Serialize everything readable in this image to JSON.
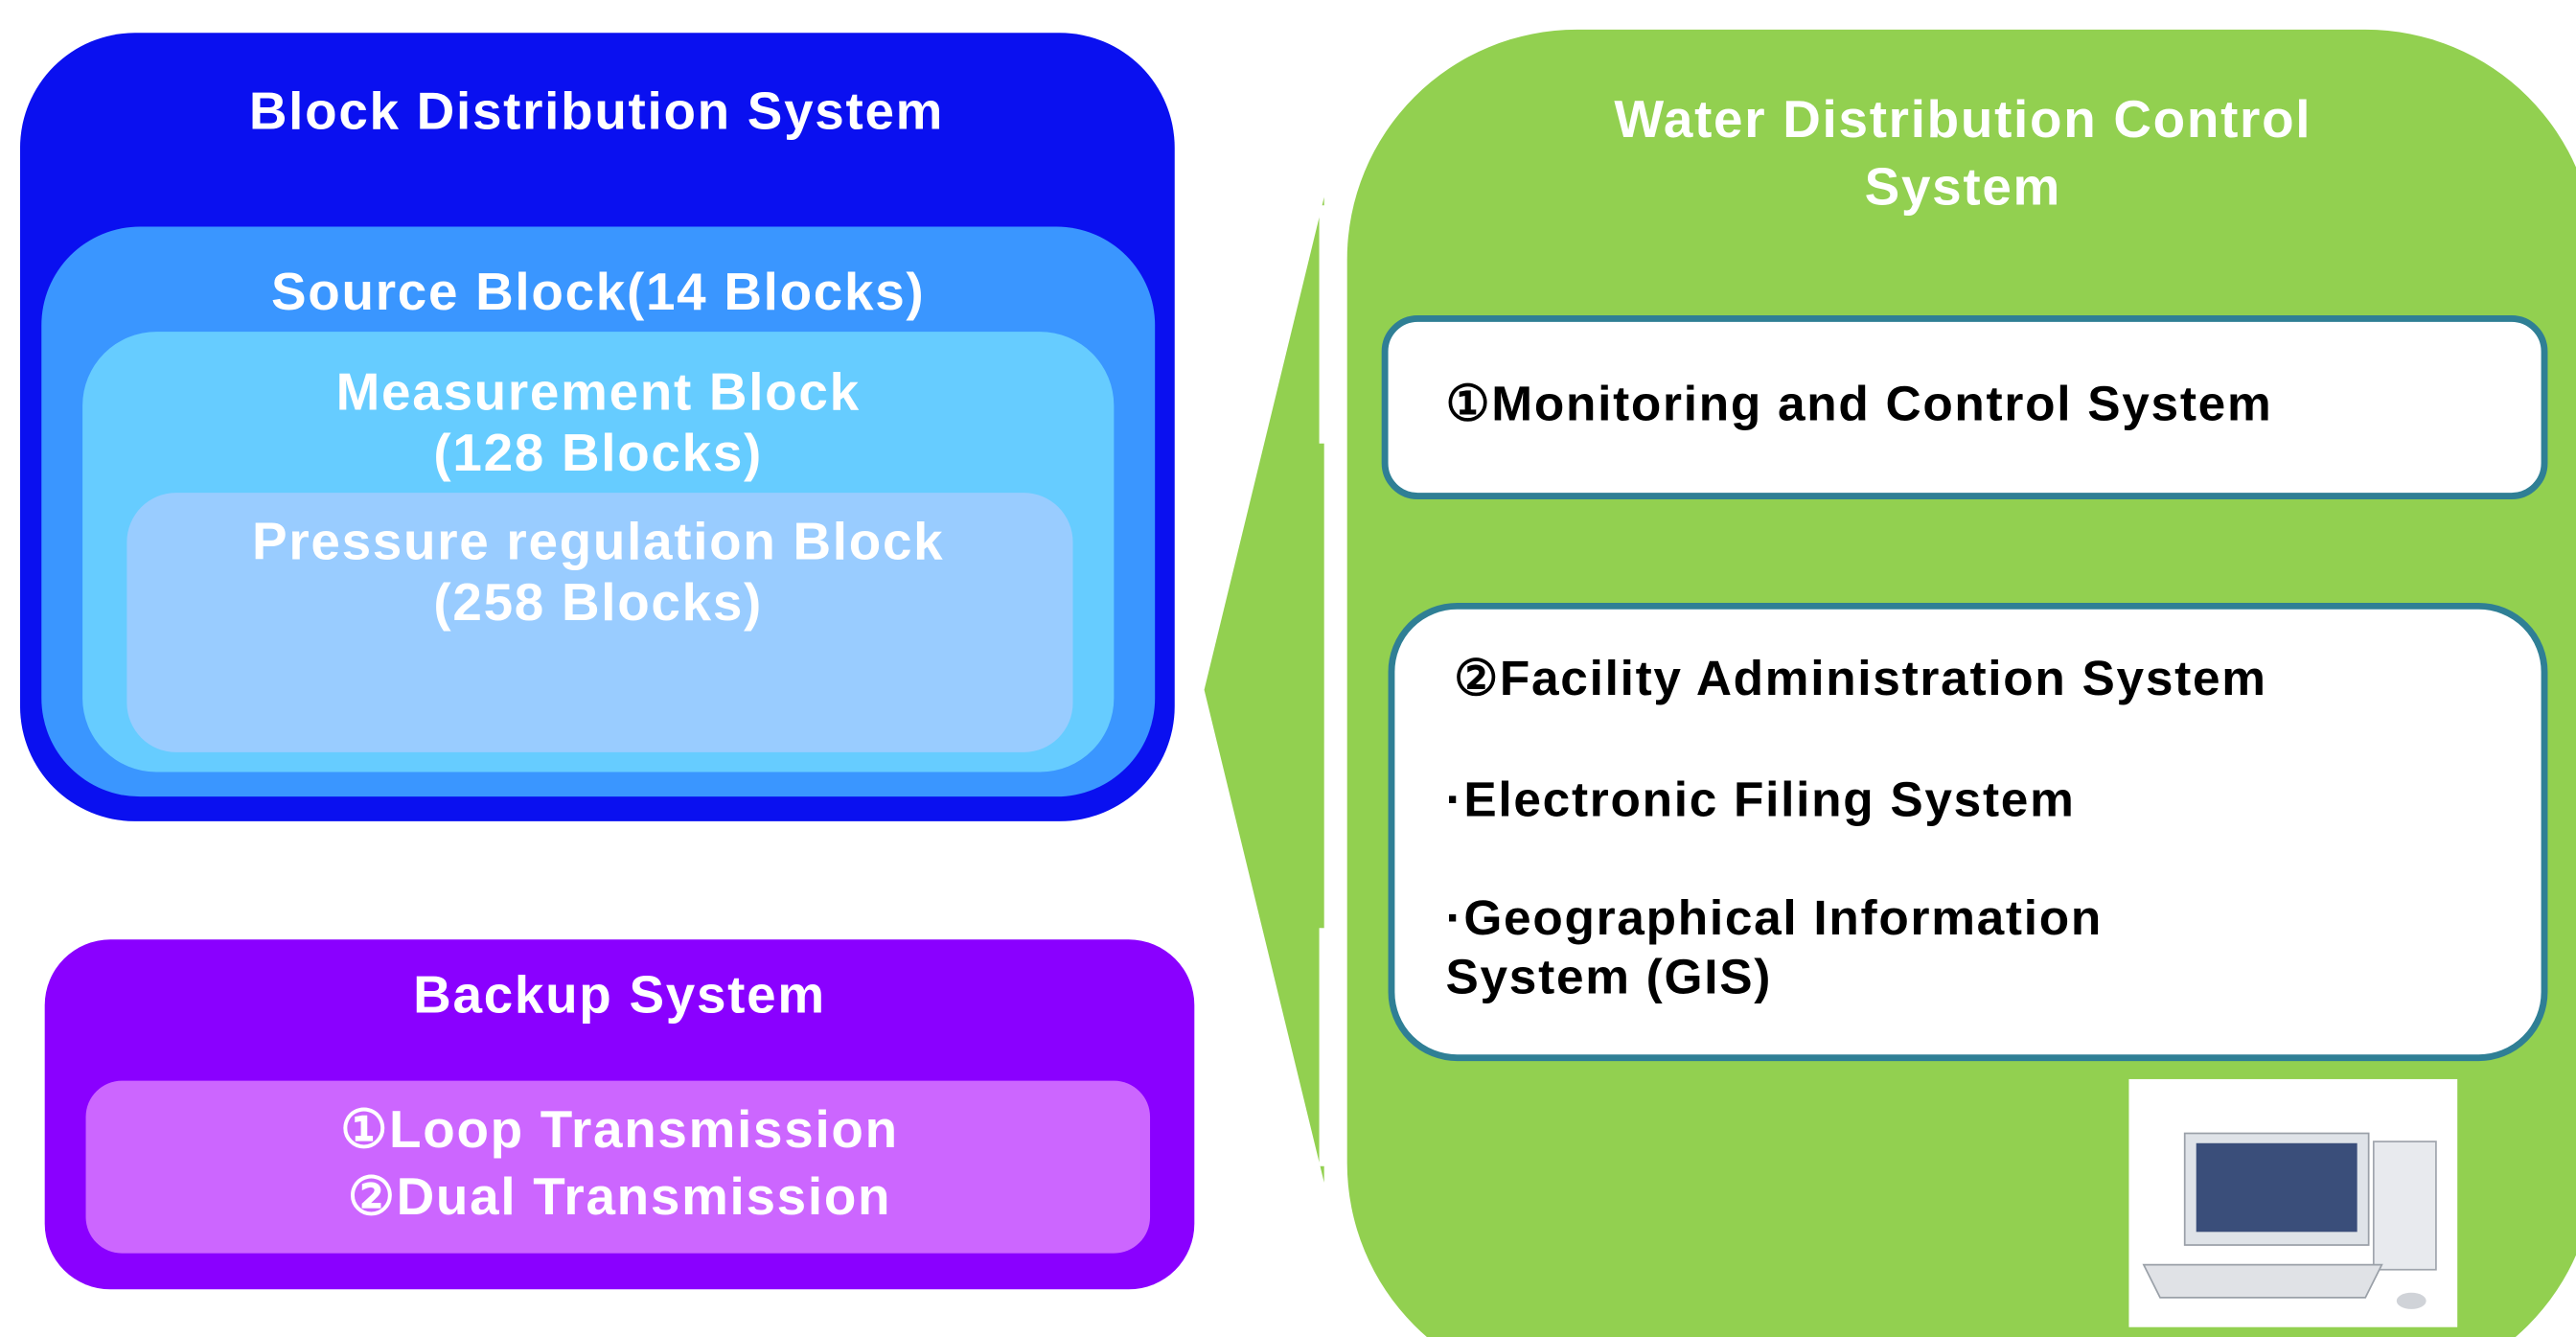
{
  "block_system": {
    "title": "Block Distribution System",
    "source": "Source Block(14 Blocks)",
    "measurement": [
      "Measurement Block",
      "(128 Blocks)"
    ],
    "pressure": [
      "Pressure regulation Block",
      "(258 Blocks)"
    ]
  },
  "backup": {
    "title": "Backup System",
    "items": [
      "①Loop Transmission",
      "②Dual Transmission"
    ]
  },
  "water": {
    "title": [
      "Water Distribution Control",
      "System"
    ],
    "monitoring": "①Monitoring and Control System",
    "facility": {
      "title": "②Facility Administration System",
      "items": [
        "·Electronic Filing System",
        "·Geographical Information",
        "System (GIS)"
      ]
    }
  }
}
